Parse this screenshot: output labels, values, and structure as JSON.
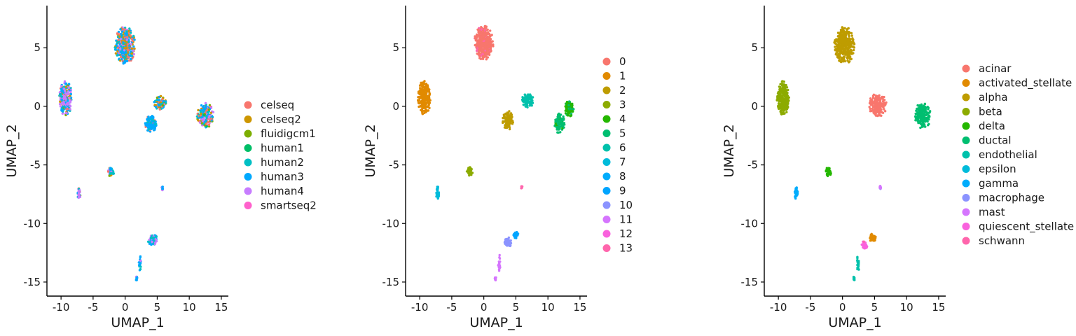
{
  "chart_data": [
    {
      "type": "scatter",
      "title": "",
      "xlabel": "UMAP_1",
      "ylabel": "UMAP_2",
      "xlim": [
        -12.2,
        16.1
      ],
      "ylim": [
        -16.2,
        8.6
      ],
      "xticks": [
        -10,
        -5,
        0,
        5,
        10,
        15
      ],
      "yticks": [
        5,
        0,
        -5,
        -10,
        -15
      ],
      "grid": false,
      "legend_position": "right",
      "series": [
        {
          "name": "celseq",
          "color": "#F8766D"
        },
        {
          "name": "celseq2",
          "color": "#CD9600"
        },
        {
          "name": "fluidigcm1",
          "color": "#7CAE00"
        },
        {
          "name": "human1",
          "color": "#00BE67"
        },
        {
          "name": "human2",
          "color": "#00BFC4"
        },
        {
          "name": "human3",
          "color": "#00A9FF"
        },
        {
          "name": "human4",
          "color": "#C77CFF"
        },
        {
          "name": "smartseq2",
          "color": "#FF61CC"
        }
      ],
      "clusters": [
        {
          "x": 0.0,
          "y": 5.2,
          "sx": 1.6,
          "sy": 1.6,
          "n": 360,
          "mix": [
            0.15,
            0.2,
            0.0,
            0.0,
            0.15,
            0.35,
            0.15,
            0.0
          ]
        },
        {
          "x": -9.3,
          "y": 0.7,
          "sx": 1.0,
          "sy": 1.5,
          "n": 240,
          "mix": [
            0.1,
            0.05,
            0.05,
            0.0,
            0.15,
            0.3,
            0.35,
            0.0
          ]
        },
        {
          "x": 5.5,
          "y": 0.3,
          "sx": 1.0,
          "sy": 0.6,
          "n": 90,
          "mix": [
            0.2,
            0.2,
            0.05,
            0.0,
            0.2,
            0.25,
            0.1,
            0.0
          ]
        },
        {
          "x": 4.0,
          "y": -1.5,
          "sx": 0.9,
          "sy": 0.7,
          "n": 110,
          "mix": [
            0.05,
            0.0,
            0.0,
            0.0,
            0.15,
            0.8,
            0.0,
            0.0
          ]
        },
        {
          "x": 12.5,
          "y": -0.8,
          "sx": 1.3,
          "sy": 1.1,
          "n": 200,
          "mix": [
            0.1,
            0.05,
            0.05,
            0.1,
            0.15,
            0.25,
            0.3,
            0.0
          ]
        },
        {
          "x": -2.2,
          "y": -5.6,
          "sx": 0.45,
          "sy": 0.4,
          "n": 45,
          "mix": [
            0.05,
            0.05,
            0.05,
            0.0,
            0.2,
            0.3,
            0.35,
            0.0
          ]
        },
        {
          "x": -7.2,
          "y": -7.4,
          "sx": 0.25,
          "sy": 0.55,
          "n": 35,
          "mix": [
            0.05,
            0.1,
            0.0,
            0.0,
            0.1,
            0.1,
            0.65,
            0.0
          ]
        },
        {
          "x": 4.3,
          "y": -11.4,
          "sx": 0.8,
          "sy": 0.45,
          "n": 70,
          "mix": [
            0.05,
            0.05,
            0.0,
            0.0,
            0.3,
            0.4,
            0.2,
            0.0
          ]
        },
        {
          "x": 2.3,
          "y": -13.4,
          "sx": 0.2,
          "sy": 0.8,
          "n": 20,
          "mix": [
            0.0,
            0.0,
            0.0,
            0.0,
            0.2,
            0.6,
            0.2,
            0.0
          ]
        },
        {
          "x": 1.8,
          "y": -14.7,
          "sx": 0.12,
          "sy": 0.2,
          "n": 14,
          "mix": [
            0.0,
            0.0,
            0.0,
            0.0,
            0.2,
            0.4,
            0.4,
            0.0
          ]
        },
        {
          "x": 5.8,
          "y": -7.0,
          "sx": 0.12,
          "sy": 0.15,
          "n": 10,
          "mix": [
            0.0,
            0.0,
            0.0,
            0.0,
            0.0,
            0.6,
            0.4,
            0.0
          ]
        }
      ]
    },
    {
      "type": "scatter",
      "title": "",
      "xlabel": "UMAP_1",
      "ylabel": "UMAP_2",
      "xlim": [
        -12.2,
        16.1
      ],
      "ylim": [
        -16.2,
        8.6
      ],
      "xticks": [
        -10,
        -5,
        0,
        5,
        10,
        15
      ],
      "yticks": [
        5,
        0,
        -5,
        -10,
        -15
      ],
      "grid": false,
      "legend_position": "right",
      "series": [
        {
          "name": "0",
          "color": "#F8766D"
        },
        {
          "name": "1",
          "color": "#E18A00"
        },
        {
          "name": "2",
          "color": "#BE9C00"
        },
        {
          "name": "3",
          "color": "#8CAB00"
        },
        {
          "name": "4",
          "color": "#24B700"
        },
        {
          "name": "5",
          "color": "#00BE70"
        },
        {
          "name": "6",
          "color": "#00C1AB"
        },
        {
          "name": "7",
          "color": "#00BBDA"
        },
        {
          "name": "8",
          "color": "#00ACFC"
        },
        {
          "name": "9",
          "color": "#00A5FF"
        },
        {
          "name": "10",
          "color": "#8B93FF"
        },
        {
          "name": "11",
          "color": "#D575FE"
        },
        {
          "name": "12",
          "color": "#F962DD"
        },
        {
          "name": "13",
          "color": "#FF65AC"
        }
      ],
      "clusters": [
        {
          "x": 0.0,
          "y": 5.4,
          "sx": 1.5,
          "sy": 1.5,
          "n": 360,
          "mix": [
            0.88,
            0,
            0,
            0,
            0,
            0,
            0,
            0,
            0,
            0,
            0,
            0,
            0.02,
            0.1
          ]
        },
        {
          "x": -9.3,
          "y": 0.7,
          "sx": 1.0,
          "sy": 1.5,
          "n": 240,
          "mix": [
            0,
            1,
            0,
            0,
            0,
            0,
            0,
            0,
            0,
            0,
            0,
            0,
            0,
            0
          ]
        },
        {
          "x": 6.8,
          "y": 0.5,
          "sx": 1.0,
          "sy": 0.6,
          "n": 100,
          "mix": [
            0,
            0,
            0,
            0,
            0,
            0,
            1,
            0,
            0,
            0,
            0,
            0,
            0,
            0
          ]
        },
        {
          "x": 3.8,
          "y": -1.2,
          "sx": 0.9,
          "sy": 0.8,
          "n": 110,
          "mix": [
            0,
            0,
            1,
            0,
            0,
            0,
            0,
            0,
            0,
            0,
            0,
            0,
            0,
            0
          ]
        },
        {
          "x": 11.8,
          "y": -1.4,
          "sx": 0.8,
          "sy": 0.9,
          "n": 110,
          "mix": [
            0,
            0,
            0,
            0,
            0.1,
            0.9,
            0,
            0,
            0,
            0,
            0,
            0,
            0,
            0
          ]
        },
        {
          "x": 13.3,
          "y": -0.2,
          "sx": 0.7,
          "sy": 0.7,
          "n": 90,
          "mix": [
            0,
            0,
            0,
            0,
            0.8,
            0.2,
            0,
            0,
            0,
            0,
            0,
            0,
            0,
            0
          ]
        },
        {
          "x": -2.2,
          "y": -5.6,
          "sx": 0.45,
          "sy": 0.4,
          "n": 45,
          "mix": [
            0,
            0,
            0,
            1,
            0,
            0,
            0,
            0,
            0,
            0,
            0,
            0,
            0,
            0
          ]
        },
        {
          "x": -7.2,
          "y": -7.4,
          "sx": 0.25,
          "sy": 0.55,
          "n": 35,
          "mix": [
            0,
            0,
            0,
            0,
            0,
            0,
            0,
            1,
            0,
            0,
            0,
            0,
            0,
            0
          ]
        },
        {
          "x": 5.0,
          "y": -11.0,
          "sx": 0.4,
          "sy": 0.3,
          "n": 30,
          "mix": [
            0,
            0,
            0,
            0,
            0,
            0,
            0,
            0,
            0,
            1,
            0,
            0,
            0,
            0
          ]
        },
        {
          "x": 3.8,
          "y": -11.6,
          "sx": 0.6,
          "sy": 0.4,
          "n": 45,
          "mix": [
            0,
            0,
            0,
            0,
            0,
            0,
            0,
            0,
            0,
            0,
            1,
            0,
            0,
            0
          ]
        },
        {
          "x": 2.4,
          "y": -13.4,
          "sx": 0.2,
          "sy": 0.8,
          "n": 20,
          "mix": [
            0,
            0,
            0,
            0,
            0,
            0,
            0,
            0,
            0,
            0,
            0,
            1,
            0,
            0
          ]
        },
        {
          "x": 1.8,
          "y": -14.7,
          "sx": 0.12,
          "sy": 0.2,
          "n": 14,
          "mix": [
            0,
            0,
            0,
            0,
            0,
            0,
            0,
            0,
            0,
            0,
            0,
            1,
            0,
            0
          ]
        },
        {
          "x": 5.9,
          "y": -6.9,
          "sx": 0.12,
          "sy": 0.15,
          "n": 10,
          "mix": [
            0,
            0,
            0,
            0,
            0,
            0,
            0,
            0,
            0,
            0,
            0,
            0,
            0,
            1
          ]
        }
      ]
    },
    {
      "type": "scatter",
      "title": "",
      "xlabel": "UMAP_1",
      "ylabel": "UMAP_2",
      "xlim": [
        -12.2,
        16.1
      ],
      "ylim": [
        -16.2,
        8.6
      ],
      "xticks": [
        -10,
        -5,
        0,
        5,
        10,
        15
      ],
      "yticks": [
        5,
        0,
        -5,
        -10,
        -15
      ],
      "grid": false,
      "legend_position": "right",
      "series": [
        {
          "name": "acinar",
          "color": "#F8766D"
        },
        {
          "name": "activated_stellate",
          "color": "#E18A00"
        },
        {
          "name": "alpha",
          "color": "#BE9C00"
        },
        {
          "name": "beta",
          "color": "#8CAB00"
        },
        {
          "name": "delta",
          "color": "#24B700"
        },
        {
          "name": "ductal",
          "color": "#00BE70"
        },
        {
          "name": "endothelial",
          "color": "#00C1AB"
        },
        {
          "name": "epsilon",
          "color": "#00BBDA"
        },
        {
          "name": "gamma",
          "color": "#00ACFC"
        },
        {
          "name": "macrophage",
          "color": "#8B93FF"
        },
        {
          "name": "mast",
          "color": "#D575FE"
        },
        {
          "name": "quiescent_stellate",
          "color": "#F962DD"
        },
        {
          "name": "schwann",
          "color": "#FF65AC"
        }
      ],
      "clusters": [
        {
          "x": 0.3,
          "y": 5.2,
          "sx": 1.6,
          "sy": 1.6,
          "n": 360,
          "mix": [
            0,
            0,
            1,
            0,
            0,
            0,
            0,
            0,
            0,
            0,
            0,
            0,
            0
          ]
        },
        {
          "x": -9.3,
          "y": 0.7,
          "sx": 1.0,
          "sy": 1.5,
          "n": 240,
          "mix": [
            0,
            0,
            0,
            1,
            0,
            0,
            0,
            0,
            0,
            0,
            0,
            0,
            0
          ]
        },
        {
          "x": 5.5,
          "y": 0.1,
          "sx": 1.4,
          "sy": 1.0,
          "n": 180,
          "mix": [
            1,
            0,
            0,
            0,
            0,
            0,
            0,
            0,
            0,
            0,
            0,
            0,
            0
          ]
        },
        {
          "x": 12.5,
          "y": -0.8,
          "sx": 1.3,
          "sy": 1.1,
          "n": 200,
          "mix": [
            0,
            0,
            0,
            0,
            0,
            1,
            0,
            0,
            0,
            0,
            0,
            0,
            0
          ]
        },
        {
          "x": -2.2,
          "y": -5.6,
          "sx": 0.45,
          "sy": 0.4,
          "n": 45,
          "mix": [
            0,
            0,
            0,
            0,
            1,
            0,
            0,
            0,
            0,
            0,
            0,
            0,
            0
          ]
        },
        {
          "x": -7.2,
          "y": -7.4,
          "sx": 0.25,
          "sy": 0.55,
          "n": 35,
          "mix": [
            0,
            0.05,
            0,
            0,
            0,
            0,
            0,
            0,
            0.95,
            0,
            0,
            0,
            0
          ]
        },
        {
          "x": 4.7,
          "y": -11.2,
          "sx": 0.55,
          "sy": 0.35,
          "n": 40,
          "mix": [
            0,
            1,
            0,
            0,
            0,
            0,
            0,
            0,
            0,
            0,
            0,
            0,
            0
          ]
        },
        {
          "x": 3.5,
          "y": -11.8,
          "sx": 0.5,
          "sy": 0.35,
          "n": 35,
          "mix": [
            0,
            0,
            0,
            0,
            0,
            0,
            0,
            0,
            0,
            0,
            0,
            0.9,
            0.1
          ]
        },
        {
          "x": 2.4,
          "y": -13.4,
          "sx": 0.2,
          "sy": 0.8,
          "n": 20,
          "mix": [
            0,
            0,
            0,
            0,
            0,
            0,
            1,
            0,
            0,
            0,
            0,
            0,
            0
          ]
        },
        {
          "x": 1.8,
          "y": -14.7,
          "sx": 0.12,
          "sy": 0.2,
          "n": 14,
          "mix": [
            0,
            0,
            0,
            0,
            0,
            0,
            1,
            0,
            0,
            0,
            0,
            0,
            0
          ]
        },
        {
          "x": 5.9,
          "y": -6.9,
          "sx": 0.12,
          "sy": 0.15,
          "n": 10,
          "mix": [
            0,
            0,
            0,
            0,
            0,
            0,
            0,
            0,
            0,
            1,
            0.5,
            0,
            0
          ]
        }
      ]
    }
  ]
}
